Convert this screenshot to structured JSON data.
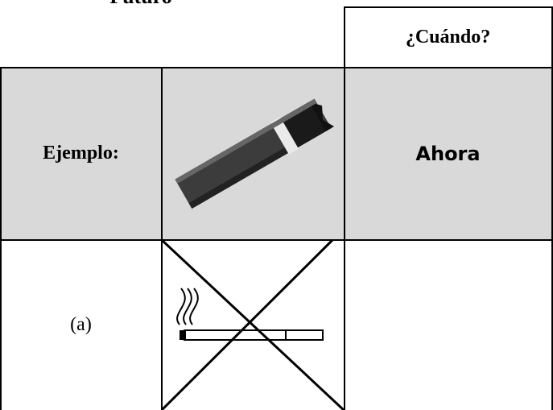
{
  "title": "Futuro",
  "table": {
    "column_header": "¿Cuándo?",
    "rows": [
      {
        "label": "Ejemplo:",
        "when": "Ahora"
      },
      {
        "label": "(a)"
      }
    ]
  }
}
